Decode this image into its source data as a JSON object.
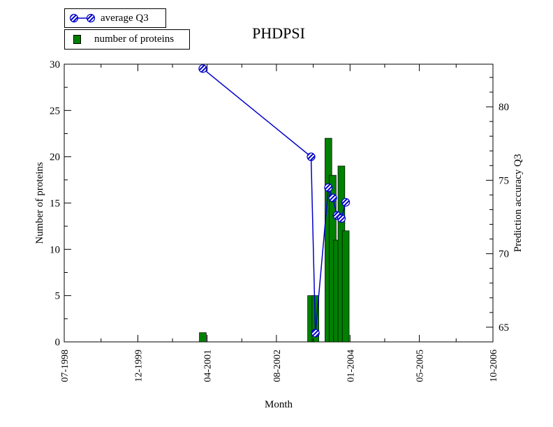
{
  "chart_data": {
    "type": "bar+line",
    "title": "PHDPSI",
    "xlabel": "Month",
    "ylabel_left": "Number of proteins",
    "ylabel_right": "Prediction accuracy Q3",
    "x_ticks": [
      "07-1998",
      "12-1999",
      "04-2001",
      "08-2002",
      "01-2004",
      "05-2005",
      "10-2006"
    ],
    "y_left_ticks": [
      "0",
      "5",
      "10",
      "15",
      "20",
      "25",
      "30"
    ],
    "y_right_ticks": [
      "65",
      "70",
      "75",
      "80"
    ],
    "y_left_range": [
      0,
      30
    ],
    "y_right_range": [
      64,
      82.9
    ],
    "x_range": [
      "1998-07",
      "2006-10"
    ],
    "legend": [
      {
        "key": "q3",
        "label": "average Q3"
      },
      {
        "key": "proteins",
        "label": "number of proteins"
      }
    ],
    "series": [
      {
        "name": "number of proteins",
        "kind": "bar",
        "color": "#008000",
        "points": [
          {
            "x": "2001-03",
            "y": 1
          },
          {
            "x": "2003-04",
            "y": 5
          },
          {
            "x": "2003-05",
            "y": 5
          },
          {
            "x": "2003-08",
            "y": 22
          },
          {
            "x": "2003-09",
            "y": 18
          },
          {
            "x": "2003-10",
            "y": 11
          },
          {
            "x": "2003-11",
            "y": 19
          },
          {
            "x": "2003-12",
            "y": 12
          }
        ]
      },
      {
        "name": "average Q3",
        "kind": "line",
        "color": "#0000cc",
        "points": [
          {
            "x": "2001-03",
            "y": 82.6
          },
          {
            "x": "2003-04",
            "y": 76.6
          },
          {
            "x": "2003-05",
            "y": 64.6
          },
          {
            "x": "2003-08",
            "y": 74.5
          },
          {
            "x": "2003-09",
            "y": 73.8
          },
          {
            "x": "2003-10",
            "y": 72.6
          },
          {
            "x": "2003-11",
            "y": 72.4
          },
          {
            "x": "2003-12",
            "y": 73.5
          }
        ]
      }
    ]
  }
}
